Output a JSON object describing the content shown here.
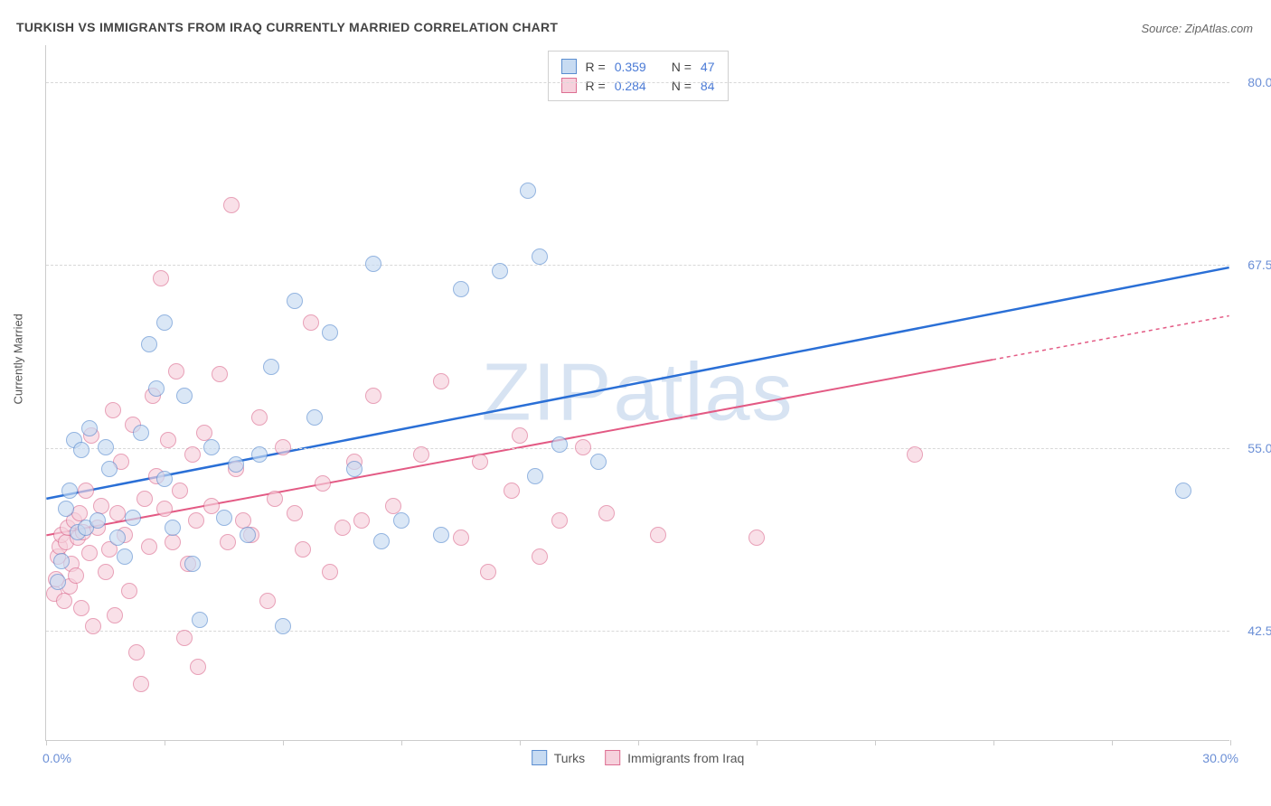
{
  "title": "TURKISH VS IMMIGRANTS FROM IRAQ CURRENTLY MARRIED CORRELATION CHART",
  "source": "Source: ZipAtlas.com",
  "watermark": "ZIPatlas",
  "ylabel": "Currently Married",
  "chart": {
    "type": "scatter",
    "xlim": [
      0,
      30
    ],
    "ylim": [
      35,
      82.5
    ],
    "x_tick_positions": [
      0,
      3,
      6,
      9,
      12,
      15,
      18,
      21,
      24,
      27,
      30
    ],
    "x_tick_labels": {
      "first": "0.0%",
      "last": "30.0%"
    },
    "y_ticks": [
      {
        "pos": 42.5,
        "label": "42.5%"
      },
      {
        "pos": 55.0,
        "label": "55.0%"
      },
      {
        "pos": 67.5,
        "label": "67.5%"
      },
      {
        "pos": 80.0,
        "label": "80.0%"
      }
    ],
    "background_color": "#ffffff",
    "grid_color": "#d8d8d8",
    "axis_color": "#cccccc",
    "tick_label_color": "#6b8fd6",
    "point_radius": 9,
    "point_opacity": 0.65,
    "series": [
      {
        "name": "Turks",
        "fill": "#c7dbf2",
        "stroke": "#5a8dd0",
        "trend_color": "#2a6fd6",
        "trend_width": 2.5,
        "trend": {
          "x1": 0,
          "y1": 51.5,
          "x2": 30,
          "y2": 67.3
        },
        "R": "0.359",
        "N": "47",
        "points": [
          [
            0.3,
            45.8
          ],
          [
            0.4,
            47.2
          ],
          [
            0.5,
            50.8
          ],
          [
            0.6,
            52.0
          ],
          [
            0.7,
            55.5
          ],
          [
            0.8,
            49.2
          ],
          [
            0.9,
            54.8
          ],
          [
            1.0,
            49.5
          ],
          [
            1.1,
            56.3
          ],
          [
            1.3,
            50.0
          ],
          [
            1.5,
            55.0
          ],
          [
            1.6,
            53.5
          ],
          [
            1.8,
            48.8
          ],
          [
            2.0,
            47.5
          ],
          [
            2.2,
            50.2
          ],
          [
            2.4,
            56.0
          ],
          [
            2.6,
            62.0
          ],
          [
            2.8,
            59.0
          ],
          [
            3.0,
            52.8
          ],
          [
            3.2,
            49.5
          ],
          [
            3.5,
            58.5
          ],
          [
            3.7,
            47.0
          ],
          [
            3.9,
            43.2
          ],
          [
            4.2,
            55.0
          ],
          [
            4.5,
            50.2
          ],
          [
            4.8,
            53.8
          ],
          [
            5.1,
            49.0
          ],
          [
            5.4,
            54.5
          ],
          [
            5.7,
            60.5
          ],
          [
            6.0,
            42.8
          ],
          [
            6.3,
            65.0
          ],
          [
            6.8,
            57.0
          ],
          [
            7.2,
            62.8
          ],
          [
            7.8,
            53.5
          ],
          [
            8.3,
            67.5
          ],
          [
            8.5,
            48.6
          ],
          [
            9.0,
            50.0
          ],
          [
            10.0,
            49.0
          ],
          [
            10.5,
            65.8
          ],
          [
            11.5,
            67.0
          ],
          [
            12.2,
            72.5
          ],
          [
            12.4,
            53.0
          ],
          [
            12.5,
            68.0
          ],
          [
            13.0,
            55.2
          ],
          [
            14.0,
            54.0
          ],
          [
            28.8,
            52.0
          ],
          [
            3.0,
            63.5
          ]
        ]
      },
      {
        "name": "Immigrants from Iraq",
        "fill": "#f6d1dc",
        "stroke": "#dd6e92",
        "trend_color": "#e35a84",
        "trend_width": 2,
        "trend": {
          "x1": 0,
          "y1": 49.0,
          "x2": 24,
          "y2": 61.0
        },
        "trend_dash": {
          "x1": 24,
          "y1": 61.0,
          "x2": 30,
          "y2": 64.0
        },
        "R": "0.284",
        "N": "84",
        "points": [
          [
            0.2,
            45.0
          ],
          [
            0.25,
            46.0
          ],
          [
            0.3,
            47.5
          ],
          [
            0.35,
            48.2
          ],
          [
            0.4,
            49.0
          ],
          [
            0.45,
            44.5
          ],
          [
            0.5,
            48.5
          ],
          [
            0.55,
            49.5
          ],
          [
            0.6,
            45.5
          ],
          [
            0.65,
            47.0
          ],
          [
            0.7,
            50.0
          ],
          [
            0.75,
            46.2
          ],
          [
            0.8,
            48.8
          ],
          [
            0.85,
            50.5
          ],
          [
            0.9,
            44.0
          ],
          [
            0.95,
            49.2
          ],
          [
            1.0,
            52.0
          ],
          [
            1.1,
            47.8
          ],
          [
            1.15,
            55.8
          ],
          [
            1.2,
            42.8
          ],
          [
            1.3,
            49.5
          ],
          [
            1.4,
            51.0
          ],
          [
            1.5,
            46.5
          ],
          [
            1.6,
            48.0
          ],
          [
            1.7,
            57.5
          ],
          [
            1.75,
            43.5
          ],
          [
            1.8,
            50.5
          ],
          [
            1.9,
            54.0
          ],
          [
            2.0,
            49.0
          ],
          [
            2.1,
            45.2
          ],
          [
            2.2,
            56.5
          ],
          [
            2.3,
            41.0
          ],
          [
            2.4,
            38.8
          ],
          [
            2.5,
            51.5
          ],
          [
            2.6,
            48.2
          ],
          [
            2.7,
            58.5
          ],
          [
            2.8,
            53.0
          ],
          [
            2.9,
            66.5
          ],
          [
            3.0,
            50.8
          ],
          [
            3.1,
            55.5
          ],
          [
            3.2,
            48.5
          ],
          [
            3.3,
            60.2
          ],
          [
            3.4,
            52.0
          ],
          [
            3.5,
            42.0
          ],
          [
            3.6,
            47.0
          ],
          [
            3.7,
            54.5
          ],
          [
            3.8,
            50.0
          ],
          [
            3.85,
            40.0
          ],
          [
            4.0,
            56.0
          ],
          [
            4.2,
            51.0
          ],
          [
            4.4,
            60.0
          ],
          [
            4.6,
            48.5
          ],
          [
            4.7,
            71.5
          ],
          [
            4.8,
            53.5
          ],
          [
            5.0,
            50.0
          ],
          [
            5.2,
            49.0
          ],
          [
            5.4,
            57.0
          ],
          [
            5.6,
            44.5
          ],
          [
            5.8,
            51.5
          ],
          [
            6.0,
            55.0
          ],
          [
            6.3,
            50.5
          ],
          [
            6.5,
            48.0
          ],
          [
            6.7,
            63.5
          ],
          [
            7.0,
            52.5
          ],
          [
            7.2,
            46.5
          ],
          [
            7.5,
            49.5
          ],
          [
            7.8,
            54.0
          ],
          [
            8.0,
            50.0
          ],
          [
            8.3,
            58.5
          ],
          [
            8.8,
            51.0
          ],
          [
            9.5,
            54.5
          ],
          [
            10.0,
            59.5
          ],
          [
            10.5,
            48.8
          ],
          [
            11.0,
            54.0
          ],
          [
            11.2,
            46.5
          ],
          [
            11.8,
            52.0
          ],
          [
            12.0,
            55.8
          ],
          [
            12.5,
            47.5
          ],
          [
            13.0,
            50.0
          ],
          [
            13.6,
            55.0
          ],
          [
            14.2,
            50.5
          ],
          [
            15.5,
            49.0
          ],
          [
            18.0,
            48.8
          ],
          [
            22.0,
            54.5
          ]
        ]
      }
    ]
  },
  "legend_top": {
    "r_label": "R =",
    "n_label": "N ="
  },
  "legend_bottom": [
    {
      "label": "Turks",
      "fill": "#c7dbf2",
      "stroke": "#5a8dd0"
    },
    {
      "label": "Immigrants from Iraq",
      "fill": "#f6d1dc",
      "stroke": "#dd6e92"
    }
  ]
}
